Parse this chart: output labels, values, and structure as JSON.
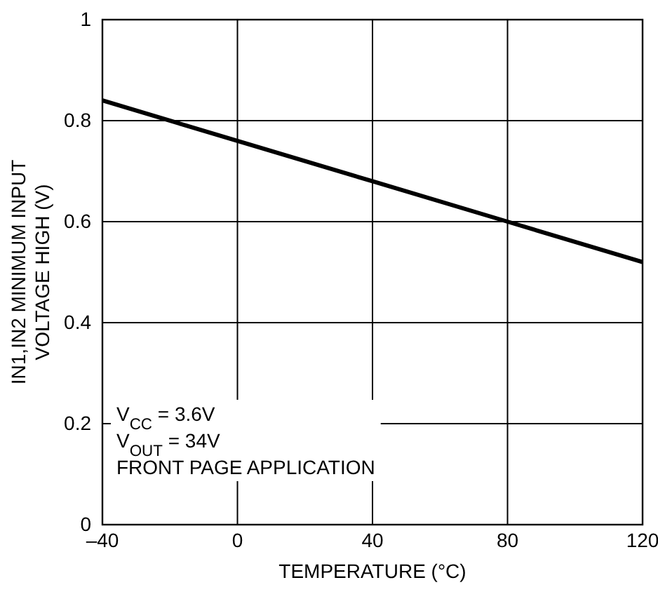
{
  "chart_data": {
    "type": "line",
    "xlabel": "TEMPERATURE (°C)",
    "ylabel": "IN1,IN2 MINIMUM INPUT\nVOLTAGE HIGH (V)",
    "x": [
      -40,
      0,
      40,
      80,
      120
    ],
    "series": [
      {
        "color": "#000000",
        "values": [
          0.84,
          0.76,
          0.68,
          0.6,
          0.52
        ]
      }
    ],
    "xlim": [
      -40,
      120
    ],
    "xticks": [
      {
        "value": -40,
        "label": "–40"
      },
      0,
      40,
      80,
      120
    ],
    "ylim": [
      0,
      1
    ],
    "yticks": [
      0,
      0.2,
      0.4,
      0.6,
      0.8,
      1
    ],
    "grid": true,
    "marker": "none",
    "line_style": "solid",
    "annotations": [
      "V$_{CC}$ = 3.6V",
      "V$_{OUT}$ = 34V",
      "FRONT PAGE APPLICATION"
    ]
  }
}
